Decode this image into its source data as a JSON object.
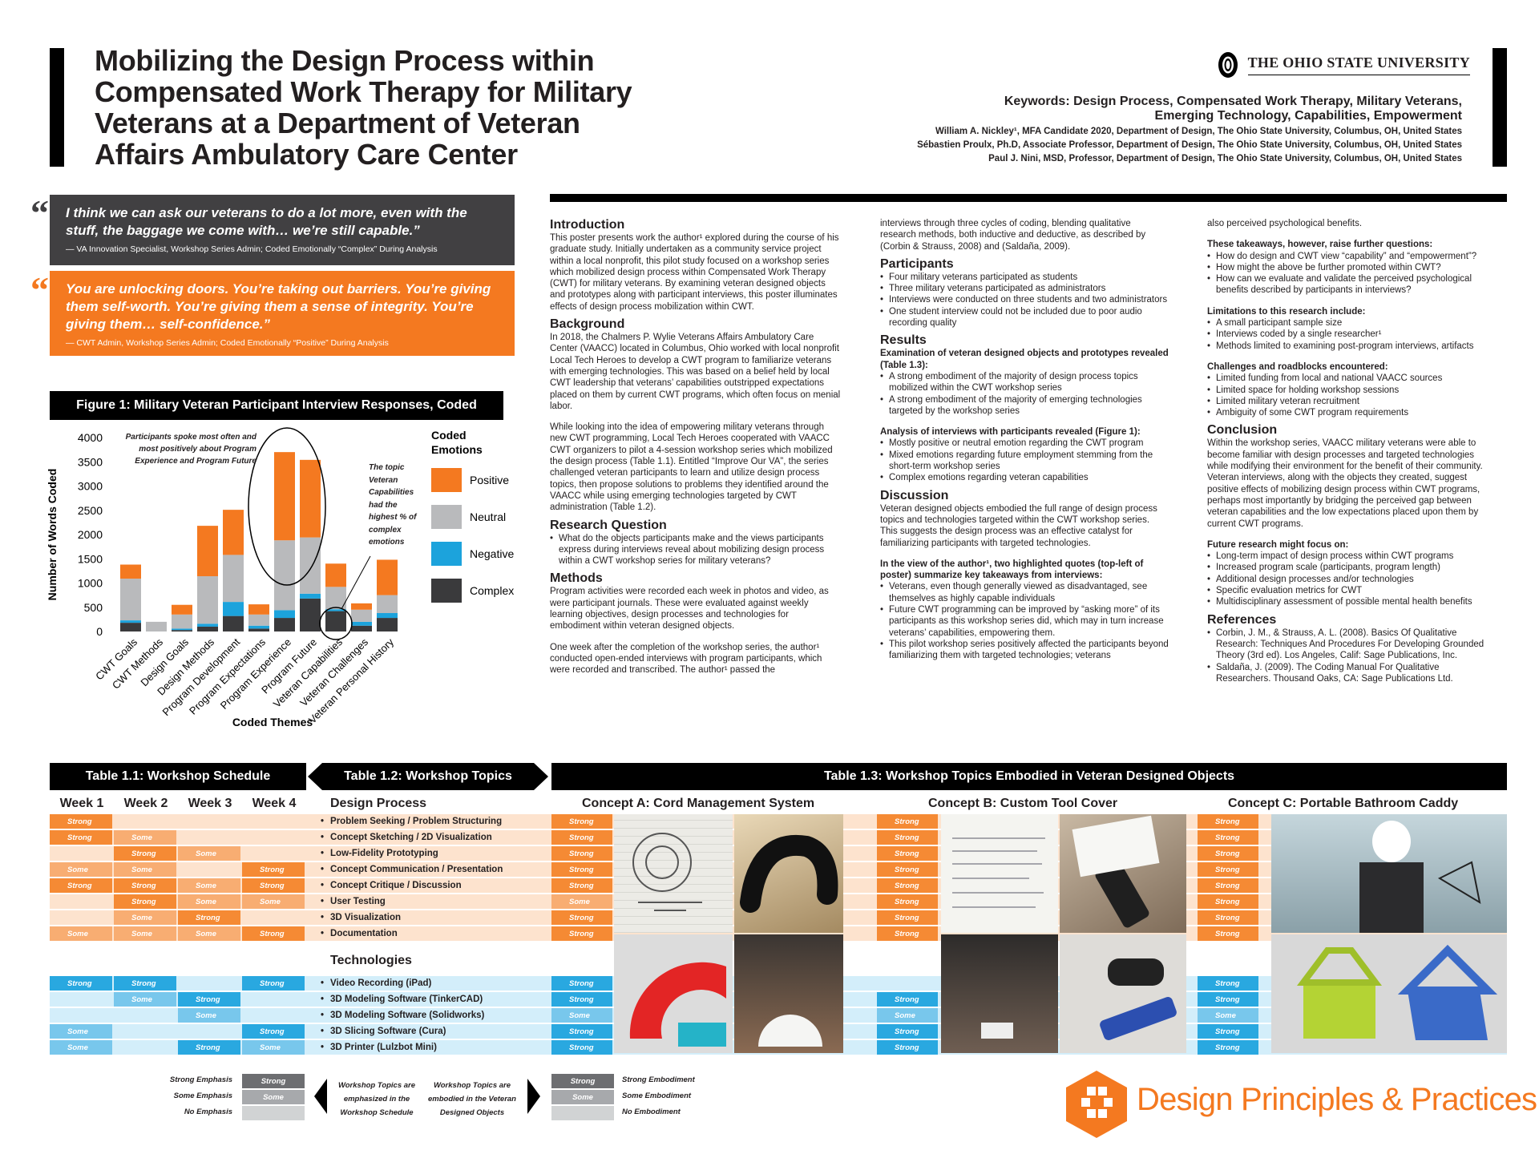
{
  "header": {
    "title": "Mobilizing the Design Process within Compensated Work Therapy for Military Veterans at a Department of Veteran Affairs Ambulatory Care Center",
    "university": "The Ohio State University",
    "keywords_line1": "Keywords: Design Process, Compensated Work Therapy, Military Veterans,",
    "keywords_line2": "Emerging Technology, Capabilities, Empowerment",
    "authors": [
      "William A. Nickley¹, MFA Candidate 2020, Department of Design, The Ohio State University, Columbus, OH, United States",
      "Sébastien Proulx, Ph.D, Associate Professor, Department of Design, The Ohio State University, Columbus, OH, United States",
      "Paul J. Nini, MSD, Professor, Department of Design, The Ohio State University, Columbus, OH, United States"
    ]
  },
  "quotes": [
    {
      "text": "I think we can ask our veterans to do a lot more, even with the stuff, the baggage we come with… we’re still capable.”",
      "attribution": "— VA Innovation Specialist, Workshop Series Admin; Coded Emotionally “Complex” During Analysis",
      "color": "#414042"
    },
    {
      "text": "You are unlocking doors. You’re taking out barriers. You’re giving them self-worth. You’re giving them a sense of integrity. You’re giving them… self-confidence.”",
      "attribution": "— CWT Admin, Workshop Series Admin; Coded Emotionally “Positive” During Analysis",
      "color": "#f47920"
    }
  ],
  "quote_mark": "“",
  "figure": {
    "title": "Figure 1: Military Veteran Participant Interview Responses, Coded",
    "annotation1": "Participants spoke most often and most positively about Program Experience and Program Future",
    "annotation2": "The topic Veteran Capabilities had the highest % of complex emotions"
  },
  "chart_data": {
    "type": "bar",
    "stacked": true,
    "xlabel": "Coded Themes",
    "ylabel": "Number of Words Coded",
    "ylim": [
      0,
      4000
    ],
    "yticks": [
      "0",
      "500",
      "1000",
      "1500",
      "2000",
      "2500",
      "3000",
      "3500",
      "4000"
    ],
    "legend_title": "Coded Emotions",
    "legend_placement": "right",
    "categories": [
      "CWT Goals",
      "CWT Methods",
      "Design Goals",
      "Design Methods",
      "Program Development",
      "Program Expectations",
      "Program Experience",
      "Program Future",
      "Veteran Capabilities",
      "Veteran Challenges",
      "Veteran Personal History"
    ],
    "series": [
      {
        "name": "Complex",
        "color": "#3a3a3c",
        "values": [
          180,
          0,
          30,
          100,
          320,
          60,
          280,
          680,
          420,
          120,
          280
        ]
      },
      {
        "name": "Negative",
        "color": "#1ca3dc",
        "values": [
          50,
          0,
          30,
          60,
          290,
          60,
          160,
          100,
          40,
          80,
          100
        ]
      },
      {
        "name": "Neutral",
        "color": "#b9babc",
        "values": [
          860,
          200,
          290,
          980,
          970,
          230,
          1440,
          1160,
          460,
          250,
          370
        ]
      },
      {
        "name": "Positive",
        "color": "#f47920",
        "values": [
          290,
          0,
          200,
          1040,
          930,
          210,
          1820,
          1600,
          480,
          130,
          730
        ]
      }
    ]
  },
  "col1": {
    "intro_h": "Introduction",
    "intro": "This poster presents work the author¹ explored during the course of his graduate study. Initially undertaken as a community service project within a local nonprofit, this pilot study focused on a workshop series which mobilized design process within Compensated Work Therapy (CWT) for military veterans. By examining veteran designed objects and prototypes along with participant interviews, this poster illuminates effects of design process mobilization within CWT.",
    "bg_h": "Background",
    "bg1": "In 2018, the Chalmers P. Wylie Veterans Affairs Ambulatory Care Center (VAACC) located in Columbus, Ohio worked with local nonprofit Local Tech Heroes to develop a CWT program to familiarize veterans with emerging technologies. This was based on a belief held by local CWT leadership that veterans’ capabilities outstripped expectations placed on them by current CWT programs, which often focus on menial labor.",
    "bg2": "While looking into the idea of empowering military veterans through new CWT programming, Local Tech Heroes cooperated with VAACC CWT organizers to pilot a 4-session workshop series which mobilized the design process (Table 1.1). Entitled “Improve Our VA”, the series challenged veteran participants to learn and utilize design process topics, then propose solutions to problems they identified around the VAACC while using emerging technologies targeted by CWT administration (Table 1.2).",
    "rq_h": "Research Question",
    "rq": "What do the objects participants make and the views participants express during interviews reveal about mobilizing design process within a CWT workshop series for military veterans?",
    "m_h": "Methods",
    "m1": "Program activities were recorded each week in photos and video, as were participant journals. These were evaluated against weekly learning objectives, design processes and technologies for embodiment within veteran designed objects.",
    "m2": "One week after the completion of the workshop series, the author¹ conducted open-ended interviews with program participants, which were recorded and transcribed. The author¹ passed the"
  },
  "col2": {
    "cont": "interviews through three cycles of coding, blending qualitative research methods, both inductive and deductive, as described by (Corbin & Strauss, 2008) and (Saldaña, 2009).",
    "p_h": "Participants",
    "p": [
      "Four military veterans participated as students",
      "Three military veterans participated as administrators",
      "Interviews were conducted on three students and two administrators",
      "One student interview could not be included due to poor audio recording quality"
    ],
    "r_h": "Results",
    "r1_h": "Examination of veteran designed objects and prototypes revealed (Table 1.3):",
    "r1": [
      "A strong embodiment of the majority of design process topics mobilized within the CWT workshop series",
      "A strong embodiment of the majority of emerging technologies targeted by the workshop series"
    ],
    "r2_h": "Analysis of interviews with participants revealed (Figure 1):",
    "r2": [
      "Mostly positive or neutral emotion regarding the CWT program",
      "Mixed emotions regarding future employment stemming from the short-term workshop series",
      "Complex emotions regarding veteran capabilities"
    ],
    "d_h": "Discussion",
    "d": "Veteran designed objects embodied the full range of design process topics and technologies targeted within the CWT workshop series. This suggests the design process was an effective catalyst for familiarizing participants with targeted technologies.",
    "d2_h": "In the view of the author¹, two highlighted quotes (top-left of poster) summarize key takeaways from interviews:",
    "d2": [
      "Veterans, even though generally viewed as disadvantaged, see themselves as highly capable individuals",
      "Future CWT programming can be improved by “asking more” of its participants as this workshop series did, which may in turn increase veterans’ capabilities, empowering them.",
      "This pilot workshop series positively affected the participants beyond familiarizing them with targeted technologies; veterans"
    ]
  },
  "col3": {
    "cont": "also perceived psychological benefits.",
    "q_h": "These takeaways, however, raise further questions:",
    "q": [
      "How do design and CWT view “capability” and “empowerment”?",
      "How might the above be further promoted within CWT?",
      "How can we evaluate and validate the perceived psychological benefits described by participants in interviews?"
    ],
    "l_h": "Limitations to this research include:",
    "l": [
      "A small participant sample size",
      "Interviews coded by a single researcher¹",
      "Methods limited to examining post-program interviews, artifacts"
    ],
    "c_h": "Challenges and roadblocks encountered:",
    "c": [
      "Limited funding from local and national VAACC sources",
      "Limited space for holding workshop sessions",
      "Limited military veteran recruitment",
      "Ambiguity of some CWT program requirements"
    ],
    "con_h": "Conclusion",
    "con": "Within the workshop series, VAACC military veterans were able to become familiar with design processes and targeted technologies while modifying their environment for the benefit of their community. Veteran interviews, along with the objects they created, suggest positive effects of mobilizing design process within CWT programs, perhaps most importantly by bridging the perceived gap between veteran capabilities and the low expectations placed upon them by current CWT programs.",
    "f_h": "Future research might focus on:",
    "f": [
      "Long-term impact of design process within CWT programs",
      "Increased program scale (participants, program length)",
      "Additional design processes and/or technologies",
      "Specific evaluation metrics for CWT",
      "Multidisciplinary assessment of possible mental health benefits"
    ],
    "ref_h": "References",
    "ref1": "Corbin, J. M., & Strauss, A. L. (2008). Basics Of Qualitative Research: Techniques And Procedures For Developing Grounded Theory (3rd ed). Los Angeles, Calif: Sage Publications, Inc.",
    "ref2": "Saldaña, J. (2009). The Coding Manual For Qualitative Researchers. Thousand Oaks, CA: Sage Publications Ltd."
  },
  "tables": {
    "t11": "Table 1.1: Workshop Schedule",
    "t12": "Table 1.2: Workshop Topics",
    "t13": "Table 1.3: Workshop Topics Embodied in Veteran Designed Objects",
    "weeks": [
      "Week 1",
      "Week 2",
      "Week 3",
      "Week 4"
    ],
    "design_h": "Design Process",
    "tech_h": "Technologies",
    "concepts": [
      "Concept A: Cord Management System",
      "Concept B: Custom Tool Cover",
      "Concept C: Portable Bathroom Caddy"
    ],
    "design_topics": [
      "Problem Seeking / Problem Structuring",
      "Concept Sketching / 2D Visualization",
      "Low-Fidelity Prototyping",
      "Concept Communication / Presentation",
      "Concept Critique / Discussion",
      "User Testing",
      "3D Visualization",
      "Documentation"
    ],
    "tech_topics": [
      "Video Recording (iPad)",
      "3D Modeling Software (TinkerCAD)",
      "3D Modeling Software (Solidworks)",
      "3D Slicing Software (Cura)",
      "3D Printer (Lulzbot Mini)"
    ],
    "design_weeks": [
      [
        "Strong",
        "",
        "",
        ""
      ],
      [
        "Strong",
        "Some",
        "",
        ""
      ],
      [
        "",
        "Strong",
        "Some",
        ""
      ],
      [
        "Some",
        "Some",
        "",
        "Strong"
      ],
      [
        "Strong",
        "Strong",
        "Some",
        "Strong"
      ],
      [
        "",
        "Strong",
        "Some",
        "Some"
      ],
      [
        "",
        "Some",
        "Strong",
        ""
      ],
      [
        "Some",
        "Some",
        "Some",
        "Strong"
      ]
    ],
    "tech_weeks": [
      [
        "Strong",
        "Strong",
        "",
        "Strong"
      ],
      [
        "",
        "Some",
        "Strong",
        ""
      ],
      [
        "",
        "",
        "Some",
        ""
      ],
      [
        "Some",
        "",
        "",
        "Strong"
      ],
      [
        "Some",
        "",
        "Strong",
        "Some"
      ]
    ],
    "design_concepts": [
      [
        "Strong",
        "Strong",
        "Strong"
      ],
      [
        "Strong",
        "Strong",
        "Strong"
      ],
      [
        "Strong",
        "Strong",
        "Strong"
      ],
      [
        "Strong",
        "Strong",
        "Strong"
      ],
      [
        "Strong",
        "Strong",
        "Strong"
      ],
      [
        "Some",
        "Strong",
        "Strong"
      ],
      [
        "Strong",
        "Strong",
        "Strong"
      ],
      [
        "Strong",
        "Strong",
        "Strong"
      ]
    ],
    "tech_concepts": [
      [
        "Strong",
        "",
        "Strong"
      ],
      [
        "Strong",
        "Strong",
        "Strong"
      ],
      [
        "Some",
        "Some",
        "Some"
      ],
      [
        "Strong",
        "Strong",
        "Strong"
      ],
      [
        "Strong",
        "Strong",
        "Strong"
      ]
    ]
  },
  "legend": {
    "levels": [
      "Strong Emphasis",
      "Some Emphasis",
      "No Emphasis"
    ],
    "strong": "Strong",
    "some": "Some",
    "left_caption": "Workshop Topics are emphasized in the Workshop Schedule",
    "right_caption": "Workshop Topics are embodied in the Veteran Designed Objects",
    "embodiment": [
      "Strong Embodiment",
      "Some Embodiment",
      "No Embodiment"
    ]
  },
  "brand": {
    "name": "Design Principles & Practices",
    "color": "#f47920"
  }
}
